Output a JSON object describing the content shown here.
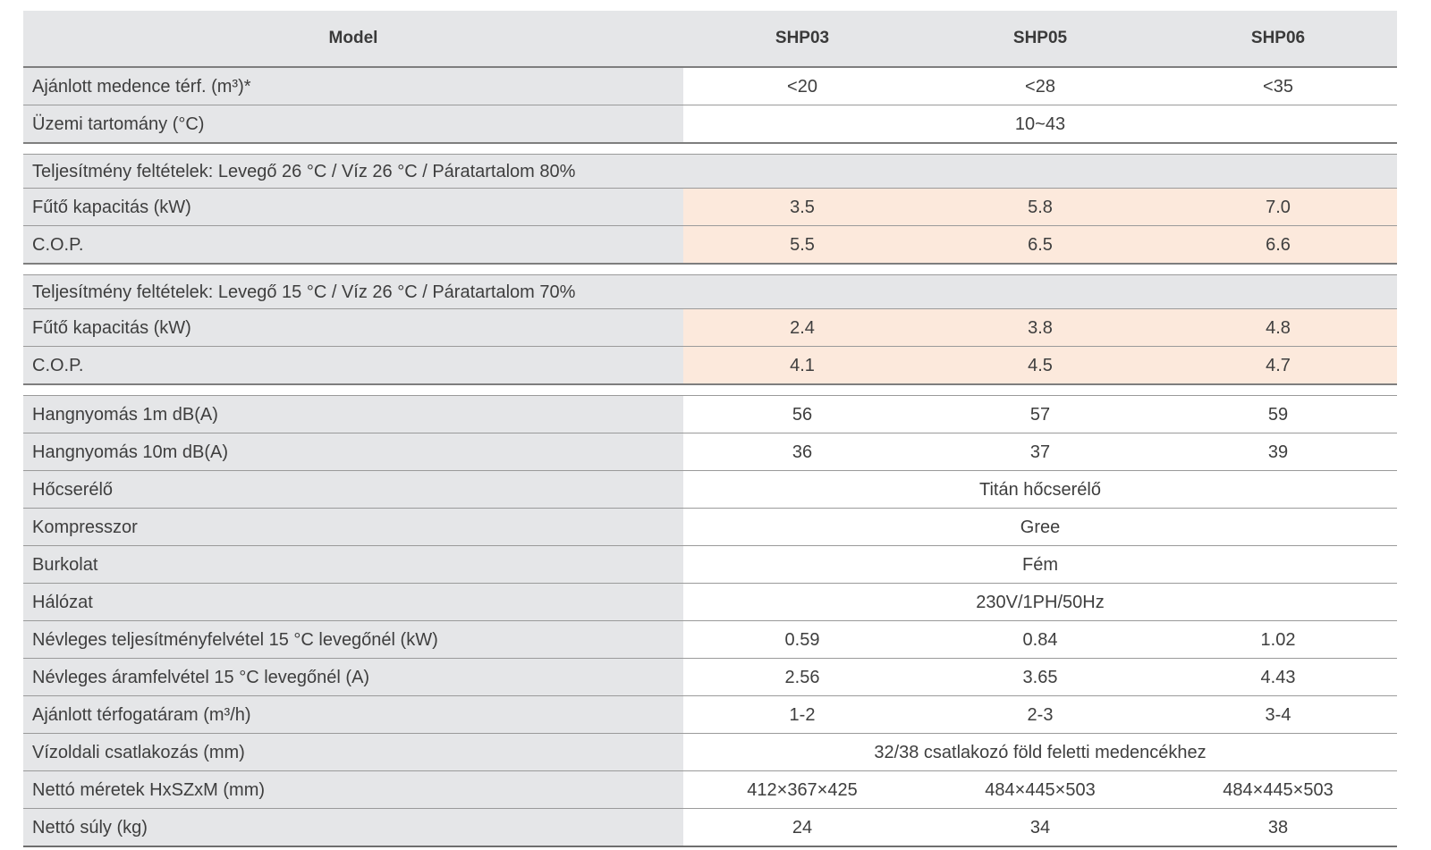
{
  "table": {
    "header": {
      "model": "Model",
      "col1": "SHP03",
      "col2": "SHP05",
      "col3": "SHP06"
    },
    "rows": [
      {
        "label": "Ajánlott medence térf. (m³)*",
        "v1": "<20",
        "v2": "<28",
        "v3": "<35"
      },
      {
        "label": "Üzemi tartomány (°C)",
        "merged": "10~43"
      },
      {
        "section": "Teljesítmény feltételek: Levegő 26 °C / Víz 26 °C / Páratartalom 80%"
      },
      {
        "label": "Fűtő kapacitás (kW)",
        "v1": "3.5",
        "v2": "5.8",
        "v3": "7.0",
        "highlight": true
      },
      {
        "label": "C.O.P.",
        "v1": "5.5",
        "v2": "6.5",
        "v3": "6.6",
        "highlight": true
      },
      {
        "section": "Teljesítmény feltételek: Levegő 15 °C / Víz 26 °C / Páratartalom 70%"
      },
      {
        "label": "Fűtő kapacitás (kW)",
        "v1": "2.4",
        "v2": "3.8",
        "v3": "4.8",
        "highlight": true
      },
      {
        "label": "C.O.P.",
        "v1": "4.1",
        "v2": "4.5",
        "v3": "4.7",
        "highlight": true
      },
      {
        "label": "Hangnyomás 1m dB(A)",
        "v1": "56",
        "v2": "57",
        "v3": "59"
      },
      {
        "label": "Hangnyomás 10m dB(A)",
        "v1": "36",
        "v2": "37",
        "v3": "39"
      },
      {
        "label": "Hőcserélő",
        "merged": "Titán hőcserélő"
      },
      {
        "label": "Kompresszor",
        "merged": "Gree"
      },
      {
        "label": "Burkolat",
        "merged": "Fém"
      },
      {
        "label": "Hálózat",
        "merged": "230V/1PH/50Hz"
      },
      {
        "label": "Névleges teljesítményfelvétel 15 °C levegőnél (kW)",
        "v1": "0.59",
        "v2": "0.84",
        "v3": "1.02"
      },
      {
        "label": "Névleges áramfelvétel 15 °C levegőnél (A)",
        "v1": "2.56",
        "v2": "3.65",
        "v3": "4.43"
      },
      {
        "label": "Ajánlott térfogatáram (m³/h)",
        "v1": "1-2",
        "v2": "2-3",
        "v3": "3-4"
      },
      {
        "label": "Vízoldali csatlakozás (mm)",
        "merged": "32/38 csatlakozó föld feletti medencékhez"
      },
      {
        "label": "Nettó méretek HxSZxM (mm)",
        "v1": "412×367×425",
        "v2": "484×445×503",
        "v3": "484×445×503"
      },
      {
        "label": "Nettó súly (kg)",
        "v1": "24",
        "v2": "34",
        "v3": "38"
      }
    ],
    "colors": {
      "header_bg": "#e5e6e8",
      "label_bg": "#e5e6e8",
      "value_bg": "#ffffff",
      "highlight_bg": "#fce9dc",
      "border": "#9a9a9a",
      "text": "#3e3e3e"
    }
  }
}
